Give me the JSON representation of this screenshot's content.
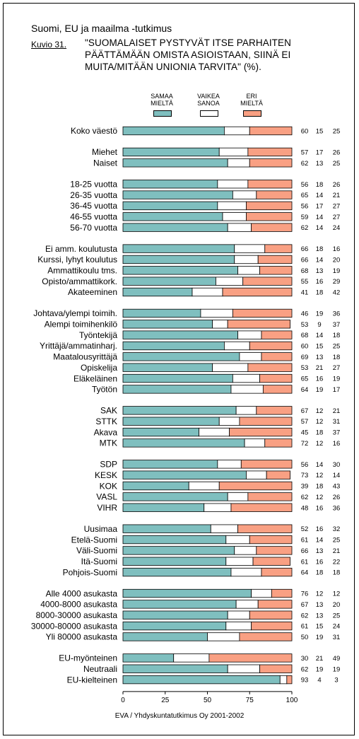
{
  "header": {
    "supertitle": "Suomi, EU ja maailma -tutkimus",
    "figure_label": "Kuvio 31.",
    "figure_title": "\"SUOMALAISET PYSTYVÄT ITSE PARHAITEN PÄÄTTÄMÄÄN OMISTA ASIOISTAAN, SIINÄ EI MUITA/MITÄÄN UNIONIA TARVITA\" (%)."
  },
  "legend": [
    {
      "label": "SAMAA\nMIELTÄ",
      "color": "#7fbfbf"
    },
    {
      "label": "VAIKEA\nSANOA",
      "color": "#ffffff"
    },
    {
      "label": "ERI\nMIELTÄ",
      "color": "#f9a083"
    }
  ],
  "source": "EVA / Yhdyskuntatutkimus Oy 2001-2002",
  "chart_data": {
    "type": "bar",
    "orientation": "horizontal",
    "stacked": true,
    "xlim": [
      0,
      100
    ],
    "x_ticks": [
      "0",
      "25",
      "50",
      "75",
      "100"
    ],
    "series_colors": [
      "#7fbfbf",
      "#ffffff",
      "#f9a083"
    ],
    "groups": [
      {
        "rows": [
          {
            "label": "Koko väestö",
            "values": [
              60,
              15,
              25
            ]
          }
        ]
      },
      {
        "rows": [
          {
            "label": "Miehet",
            "values": [
              57,
              17,
              26
            ]
          },
          {
            "label": "Naiset",
            "values": [
              62,
              13,
              25
            ]
          }
        ]
      },
      {
        "rows": [
          {
            "label": "18-25 vuotta",
            "values": [
              56,
              18,
              26
            ]
          },
          {
            "label": "26-35 vuotta",
            "values": [
              65,
              14,
              21
            ]
          },
          {
            "label": "36-45 vuotta",
            "values": [
              56,
              17,
              27
            ]
          },
          {
            "label": "46-55 vuotta",
            "values": [
              59,
              14,
              27
            ]
          },
          {
            "label": "56-70 vuotta",
            "values": [
              62,
              14,
              24
            ]
          }
        ]
      },
      {
        "rows": [
          {
            "label": "Ei amm. koulutusta",
            "values": [
              66,
              18,
              16
            ]
          },
          {
            "label": "Kurssi, lyhyt koulutus",
            "values": [
              66,
              14,
              20
            ]
          },
          {
            "label": "Ammattikoulu tms.",
            "values": [
              68,
              13,
              19
            ]
          },
          {
            "label": "Opisto/ammattikork.",
            "values": [
              55,
              16,
              29
            ]
          },
          {
            "label": "Akateeminen",
            "values": [
              41,
              18,
              42
            ]
          }
        ]
      },
      {
        "rows": [
          {
            "label": "Johtava/ylempi toimih.",
            "values": [
              46,
              19,
              36
            ]
          },
          {
            "label": "Alempi toimihenkilö",
            "values": [
              53,
              9,
              37
            ]
          },
          {
            "label": "Työntekijä",
            "values": [
              68,
              14,
              18
            ]
          },
          {
            "label": "Yrittäjä/ammatinharj.",
            "values": [
              60,
              15,
              25
            ]
          },
          {
            "label": "Maatalousyrittäjä",
            "values": [
              69,
              13,
              18
            ]
          },
          {
            "label": "Opiskelija",
            "values": [
              53,
              21,
              27
            ]
          },
          {
            "label": "Eläkeläinen",
            "values": [
              65,
              16,
              19
            ]
          },
          {
            "label": "Työtön",
            "values": [
              64,
              19,
              17
            ]
          }
        ]
      },
      {
        "rows": [
          {
            "label": "SAK",
            "values": [
              67,
              12,
              21
            ]
          },
          {
            "label": "STTK",
            "values": [
              57,
              12,
              31
            ]
          },
          {
            "label": "Akava",
            "values": [
              45,
              18,
              37
            ]
          },
          {
            "label": "MTK",
            "values": [
              72,
              12,
              16
            ]
          }
        ]
      },
      {
        "rows": [
          {
            "label": "SDP",
            "values": [
              56,
              14,
              30
            ]
          },
          {
            "label": "KESK",
            "values": [
              73,
              12,
              14
            ]
          },
          {
            "label": "KOK",
            "values": [
              39,
              18,
              43
            ]
          },
          {
            "label": "VASL",
            "values": [
              62,
              12,
              26
            ]
          },
          {
            "label": "VIHR",
            "values": [
              48,
              16,
              36
            ]
          }
        ]
      },
      {
        "rows": [
          {
            "label": "Uusimaa",
            "values": [
              52,
              16,
              32
            ]
          },
          {
            "label": "Etelä-Suomi",
            "values": [
              61,
              14,
              25
            ]
          },
          {
            "label": "Väli-Suomi",
            "values": [
              66,
              13,
              21
            ]
          },
          {
            "label": "Itä-Suomi",
            "values": [
              61,
              16,
              22
            ]
          },
          {
            "label": "Pohjois-Suomi",
            "values": [
              64,
              18,
              18
            ]
          }
        ]
      },
      {
        "rows": [
          {
            "label": "Alle 4000 asukasta",
            "values": [
              76,
              12,
              12
            ]
          },
          {
            "label": "4000-8000 asukasta",
            "values": [
              67,
              13,
              20
            ]
          },
          {
            "label": "8000-30000 asukasta",
            "values": [
              62,
              13,
              25
            ]
          },
          {
            "label": "30000-80000 asukasta",
            "values": [
              61,
              15,
              24
            ]
          },
          {
            "label": "Yli 80000 asukasta",
            "values": [
              50,
              19,
              31
            ]
          }
        ]
      },
      {
        "rows": [
          {
            "label": "EU-myönteinen",
            "values": [
              30,
              21,
              49
            ]
          },
          {
            "label": "Neutraali",
            "values": [
              62,
              19,
              19
            ]
          },
          {
            "label": "EU-kielteinen",
            "values": [
              93,
              4,
              3
            ]
          }
        ]
      }
    ]
  }
}
